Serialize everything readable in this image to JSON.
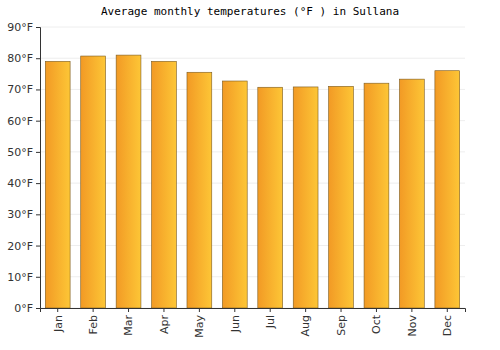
{
  "chart_data": {
    "type": "bar",
    "title": "Average monthly temperatures (°F ) in Sullana",
    "categories": [
      "Jan",
      "Feb",
      "Mar",
      "Apr",
      "May",
      "Jun",
      "Jul",
      "Aug",
      "Sep",
      "Oct",
      "Nov",
      "Dec"
    ],
    "values": [
      79,
      80.7,
      81,
      79,
      75.5,
      72.7,
      70.7,
      70.8,
      71,
      72,
      73.3,
      76
    ],
    "color": "#fba026",
    "ylim": [
      0,
      90
    ],
    "yticks": [
      {
        "value": 0,
        "label": "0°F"
      },
      {
        "value": 10,
        "label": "10°F"
      },
      {
        "value": 20,
        "label": "20°F"
      },
      {
        "value": 30,
        "label": "30°F"
      },
      {
        "value": 40,
        "label": "40°F"
      },
      {
        "value": 50,
        "label": "50°F"
      },
      {
        "value": 60,
        "label": "60°F"
      },
      {
        "value": 70,
        "label": "70°F"
      },
      {
        "value": 80,
        "label": "80°F"
      },
      {
        "value": 90,
        "label": "90°F"
      }
    ],
    "grid": true
  }
}
